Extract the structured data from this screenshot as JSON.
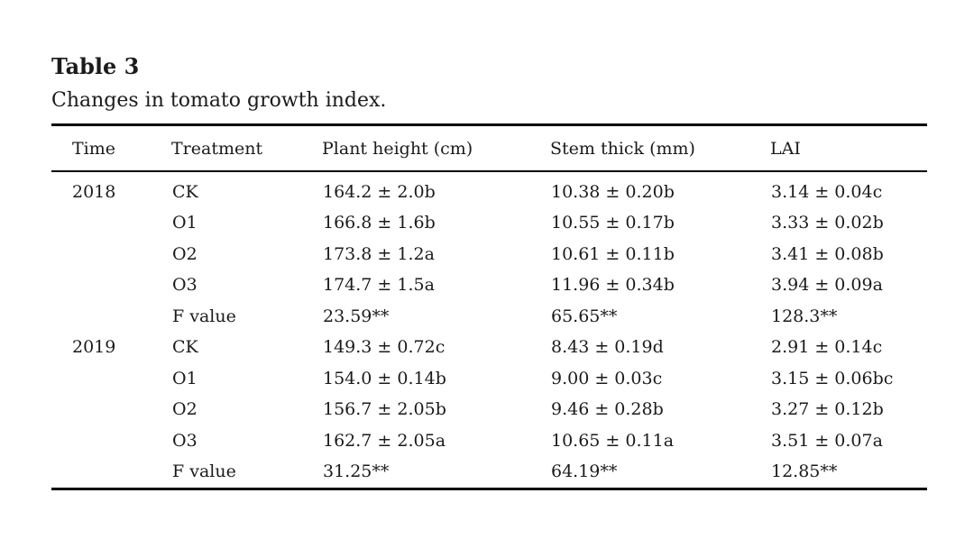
{
  "page": {
    "background_color": "#ffffff",
    "text_color": "#1b1b1b",
    "rule_color": "#000000"
  },
  "table": {
    "title": "Table 3",
    "caption": "Changes in tomato growth index.",
    "columns": [
      "Time",
      "Treatment",
      "Plant height (cm)",
      "Stem thick (mm)",
      "LAI"
    ],
    "rows": [
      [
        "2018",
        "CK",
        "164.2 ± 2.0b",
        "10.38 ± 0.20b",
        "3.14 ± 0.04c"
      ],
      [
        "",
        "O1",
        "166.8 ± 1.6b",
        "10.55 ± 0.17b",
        "3.33 ± 0.02b"
      ],
      [
        "",
        "O2",
        "173.8 ± 1.2a",
        "10.61 ± 0.11b",
        "3.41 ± 0.08b"
      ],
      [
        "",
        "O3",
        "174.7 ± 1.5a",
        "11.96 ± 0.34b",
        "3.94 ± 0.09a"
      ],
      [
        "",
        "F value",
        "23.59**",
        "65.65**",
        "128.3**"
      ],
      [
        "2019",
        "CK",
        "149.3 ± 0.72c",
        "8.43 ± 0.19d",
        "2.91 ± 0.14c"
      ],
      [
        "",
        "O1",
        "154.0 ± 0.14b",
        "9.00 ± 0.03c",
        "3.15 ± 0.06bc"
      ],
      [
        "",
        "O2",
        "156.7 ± 2.05b",
        "9.46 ± 0.28b",
        "3.27 ± 0.12b"
      ],
      [
        "",
        "O3",
        "162.7 ± 2.05a",
        "10.65 ± 0.11a",
        "3.51 ± 0.07a"
      ],
      [
        "",
        "F value",
        "31.25**",
        "64.19**",
        "12.85**"
      ]
    ]
  }
}
